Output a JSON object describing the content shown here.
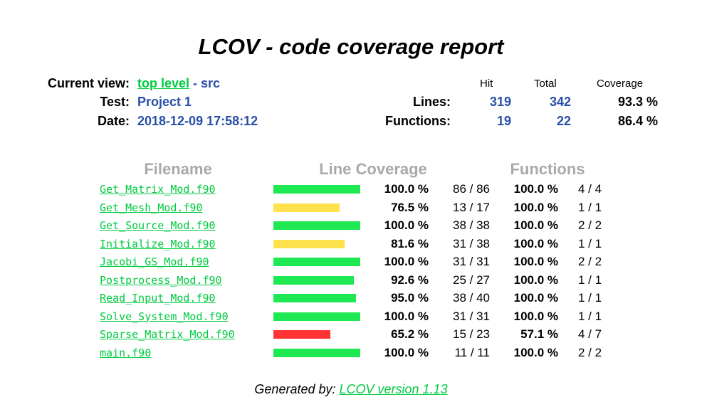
{
  "title": "LCOV - code coverage report",
  "header": {
    "current_view_label": "Current view:",
    "current_view_link": "top level",
    "current_view_sep": " - ",
    "current_view_dir": "src",
    "test_label": "Test:",
    "test_value": "Project 1",
    "date_label": "Date:",
    "date_value": "2018-12-09 17:58:12",
    "col_hit": "Hit",
    "col_total": "Total",
    "col_coverage": "Coverage",
    "lines_label": "Lines:",
    "lines_hit": "319",
    "lines_total": "342",
    "lines_coverage": "93.3 %",
    "functions_label": "Functions:",
    "functions_hit": "19",
    "functions_total": "22",
    "functions_coverage": "86.4 %"
  },
  "table": {
    "head_filename": "Filename",
    "head_line_coverage": "Line Coverage",
    "head_functions": "Functions",
    "rows": [
      {
        "file": "Get_Matrix_Mod.f90",
        "line_pct": "100.0 %",
        "line_count": "86 / 86",
        "func_pct": "100.0 %",
        "func_count": "4 / 4",
        "bar_fraction": 1.0,
        "bar_color": "#1ee852"
      },
      {
        "file": "Get_Mesh_Mod.f90",
        "line_pct": "76.5 %",
        "line_count": "13 / 17",
        "func_pct": "100.0 %",
        "func_count": "1 / 1",
        "bar_fraction": 0.765,
        "bar_color": "#ffe04d"
      },
      {
        "file": "Get_Source_Mod.f90",
        "line_pct": "100.0 %",
        "line_count": "38 / 38",
        "func_pct": "100.0 %",
        "func_count": "2 / 2",
        "bar_fraction": 1.0,
        "bar_color": "#1ee852"
      },
      {
        "file": "Initialize_Mod.f90",
        "line_pct": "81.6 %",
        "line_count": "31 / 38",
        "func_pct": "100.0 %",
        "func_count": "1 / 1",
        "bar_fraction": 0.816,
        "bar_color": "#ffe04d"
      },
      {
        "file": "Jacobi_GS_Mod.f90",
        "line_pct": "100.0 %",
        "line_count": "31 / 31",
        "func_pct": "100.0 %",
        "func_count": "2 / 2",
        "bar_fraction": 1.0,
        "bar_color": "#1ee852"
      },
      {
        "file": "Postprocess_Mod.f90",
        "line_pct": "92.6 %",
        "line_count": "25 / 27",
        "func_pct": "100.0 %",
        "func_count": "1 / 1",
        "bar_fraction": 0.926,
        "bar_color": "#1ee852"
      },
      {
        "file": "Read_Input_Mod.f90",
        "line_pct": "95.0 %",
        "line_count": "38 / 40",
        "func_pct": "100.0 %",
        "func_count": "1 / 1",
        "bar_fraction": 0.95,
        "bar_color": "#1ee852"
      },
      {
        "file": "Solve_System_Mod.f90",
        "line_pct": "100.0 %",
        "line_count": "31 / 31",
        "func_pct": "100.0 %",
        "func_count": "1 / 1",
        "bar_fraction": 1.0,
        "bar_color": "#1ee852"
      },
      {
        "file": "Sparse_Matrix_Mod.f90",
        "line_pct": "65.2 %",
        "line_count": "15 / 23",
        "func_pct": "57.1 %",
        "func_count": "4 / 7",
        "bar_fraction": 0.652,
        "bar_color": "#ff3333"
      },
      {
        "file": "main.f90",
        "line_pct": "100.0 %",
        "line_count": "11 / 11",
        "func_pct": "100.0 %",
        "func_count": "2 / 2",
        "bar_fraction": 1.0,
        "bar_color": "#1ee852"
      }
    ]
  },
  "footer": {
    "prefix": "Generated by: ",
    "link": "LCOV version 1.13"
  },
  "colors": {
    "link_green": "#00cb40",
    "value_blue": "#284fa8",
    "head_gray": "#a9a9a9"
  }
}
